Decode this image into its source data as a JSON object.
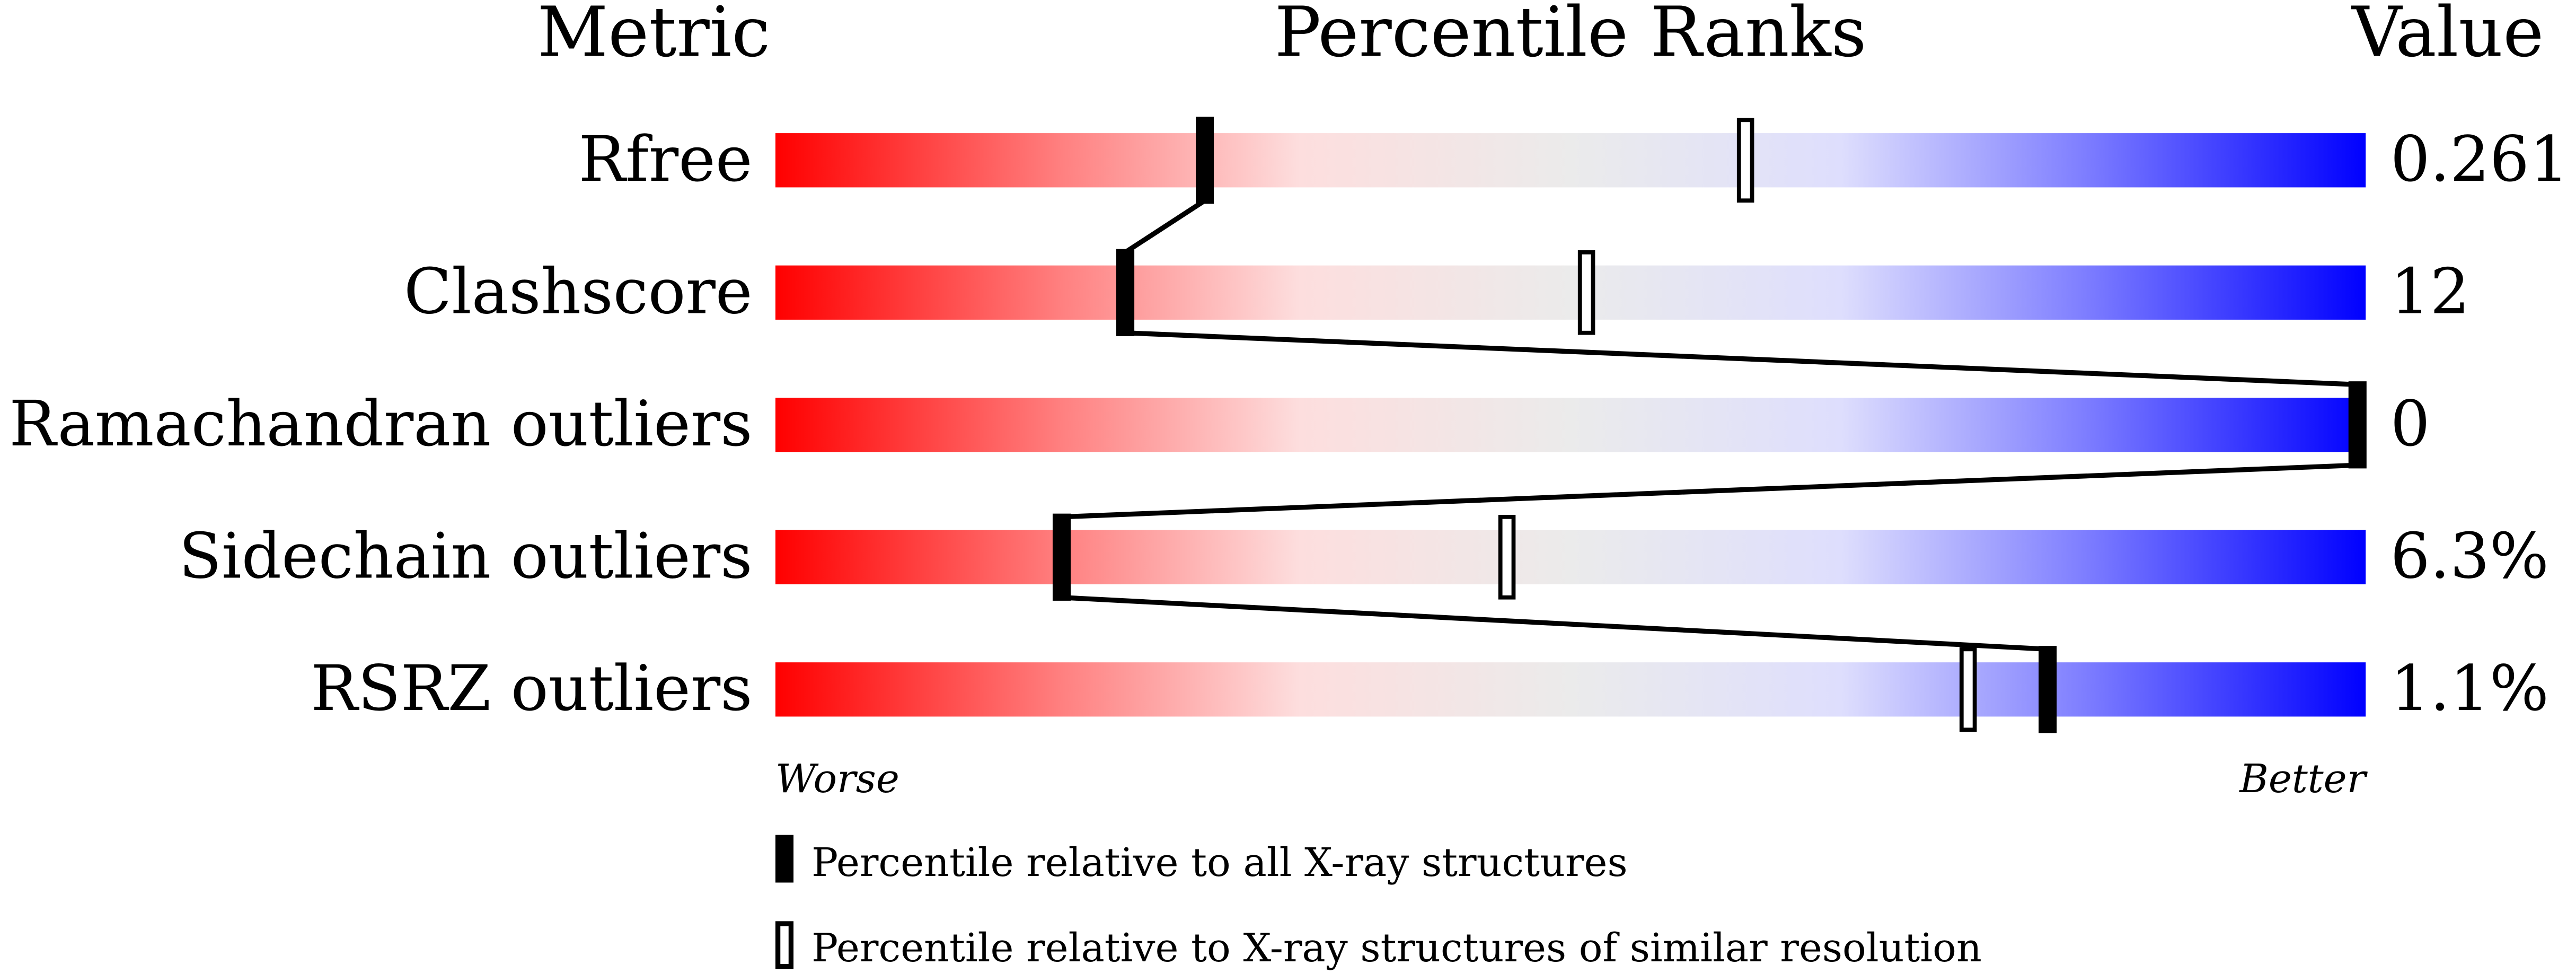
{
  "chart_data": {
    "type": "bar",
    "headers": {
      "metric": "Metric",
      "ranks": "Percentile Ranks",
      "value": "Value"
    },
    "xlim": [
      0,
      100
    ],
    "axis_labels": {
      "left": "Worse",
      "right": "Better"
    },
    "gradient_colors": [
      "#ff0000",
      "#ff8080",
      "#fddede",
      "#ebebeb",
      "#dedefd",
      "#8080ff",
      "#0000ff"
    ],
    "rows": [
      {
        "metric": "Rfree",
        "value": "0.261",
        "percentile_all": 27,
        "percentile_similar": 61
      },
      {
        "metric": "Clashscore",
        "value": "12",
        "percentile_all": 22,
        "percentile_similar": 51
      },
      {
        "metric": "Ramachandran outliers",
        "value": "0",
        "percentile_all": 100,
        "percentile_similar": 100
      },
      {
        "metric": "Sidechain outliers",
        "value": "6.3%",
        "percentile_all": 18,
        "percentile_similar": 46
      },
      {
        "metric": "RSRZ outliers",
        "value": "1.1%",
        "percentile_all": 80,
        "percentile_similar": 75
      }
    ],
    "legend": [
      {
        "marker": "filled",
        "label": "Percentile relative to all X-ray structures"
      },
      {
        "marker": "hollow",
        "label": "Percentile relative to X-ray structures of similar resolution"
      }
    ]
  }
}
